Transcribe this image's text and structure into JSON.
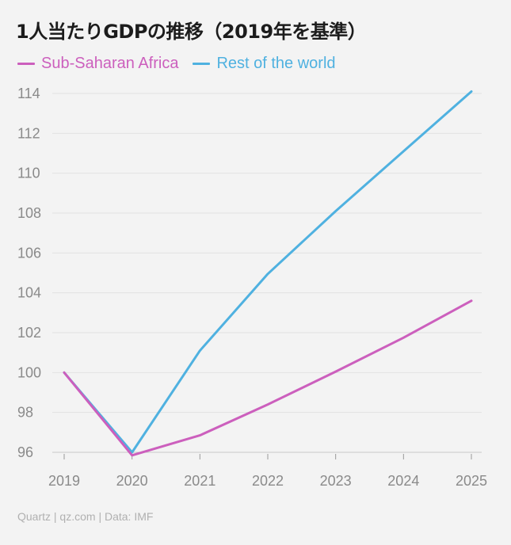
{
  "chart_data": {
    "type": "line",
    "title": "1人当たりGDPの推移（2019年を基準）",
    "xlabel": "",
    "ylabel": "",
    "x": [
      "2019",
      "2020",
      "2021",
      "2022",
      "2023",
      "2024",
      "2025"
    ],
    "y_ticks": [
      "96",
      "98",
      "100",
      "102",
      "104",
      "106",
      "108",
      "110",
      "112",
      "114"
    ],
    "ylim": [
      96,
      114
    ],
    "grid": true,
    "legend_position": "top-left",
    "series": [
      {
        "name": "Sub-Saharan Africa",
        "color": "#cc5fbd",
        "values": [
          100,
          95.85,
          96.85,
          98.4,
          100.05,
          101.75,
          103.6
        ]
      },
      {
        "name": "Rest of the world",
        "color": "#4fb1e0",
        "values": [
          100,
          96.0,
          101.1,
          104.95,
          108.1,
          111.1,
          114.1
        ]
      }
    ]
  },
  "source": "Quartz | qz.com | Data: IMF"
}
